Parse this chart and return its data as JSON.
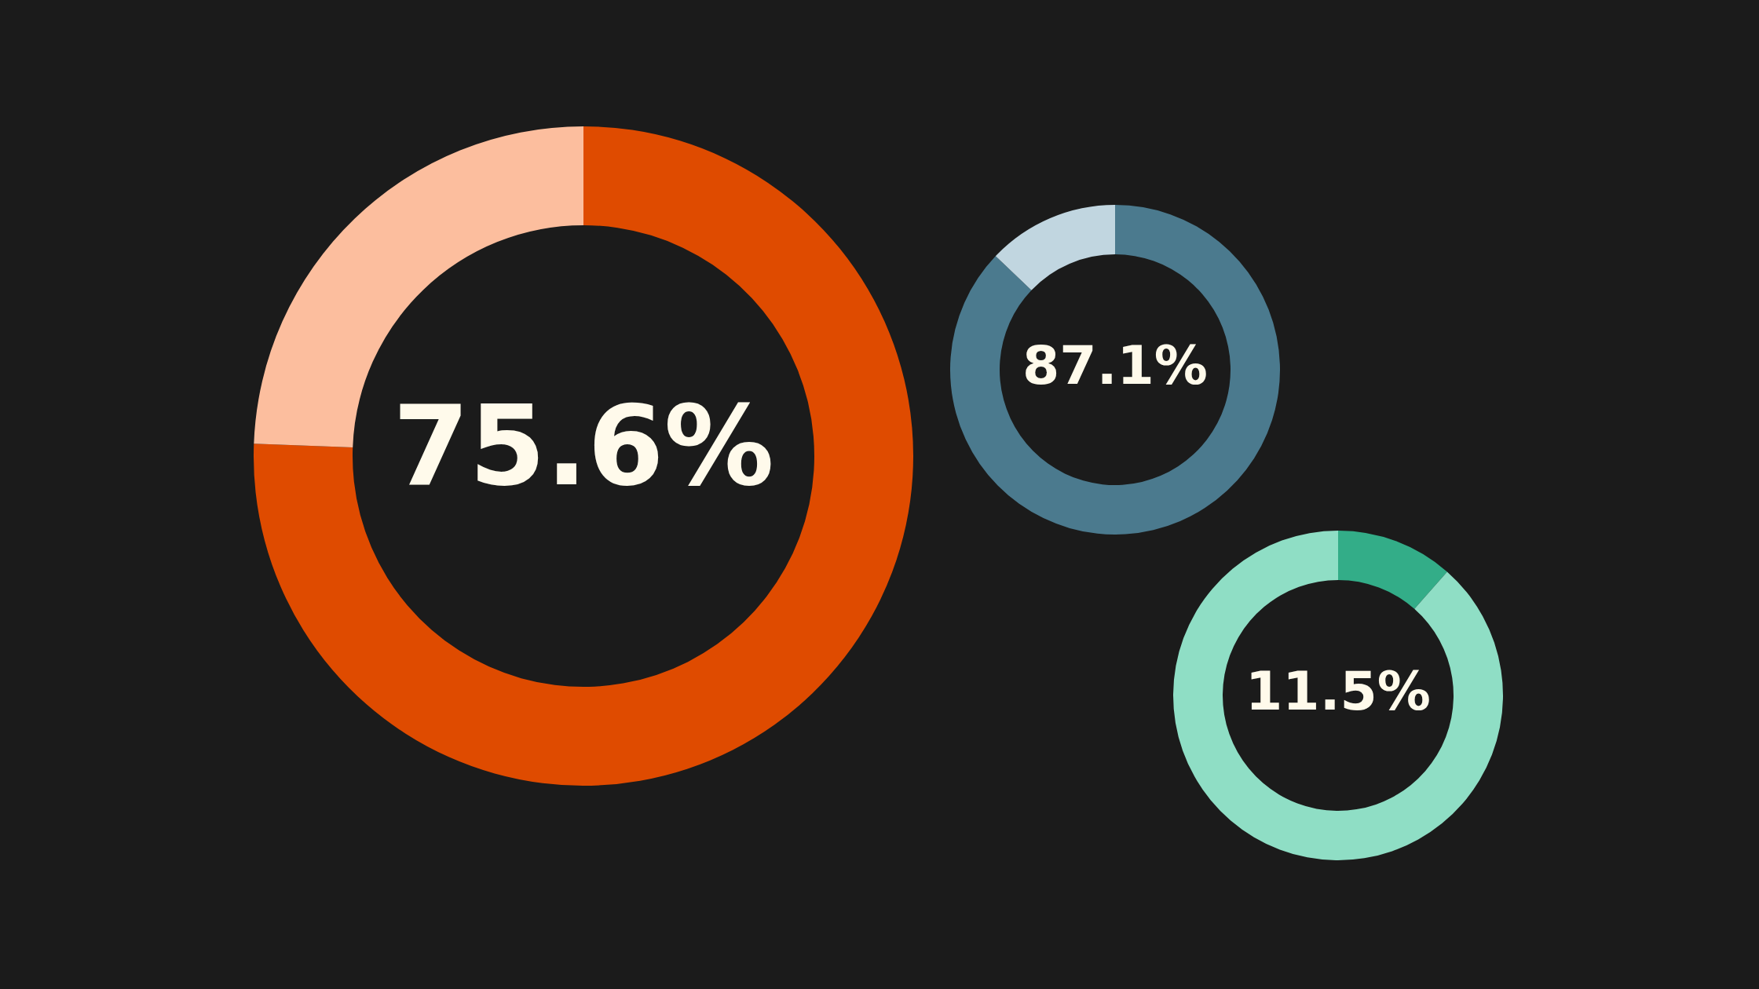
{
  "chart_data": [
    {
      "type": "donut",
      "categories": [
        null,
        null
      ],
      "values": [
        75.6,
        24.4
      ],
      "colors": [
        "#df4b00",
        "#fcbe9e"
      ],
      "value_labels": [
        "75.6%",
        null
      ]
    },
    {
      "type": "donut",
      "categories": [
        null,
        null
      ],
      "values": [
        87.1,
        12.9
      ],
      "colors": [
        "#4b7a8e",
        "#c1d6e0"
      ],
      "value_labels": [
        "87.1%",
        null
      ]
    },
    {
      "type": "donut",
      "categories": [
        null,
        null
      ],
      "values": [
        11.5,
        88.5
      ],
      "colors": [
        "#33ad88",
        "#8fdec5"
      ],
      "value_labels": [
        "11.5%",
        null
      ]
    }
  ]
}
